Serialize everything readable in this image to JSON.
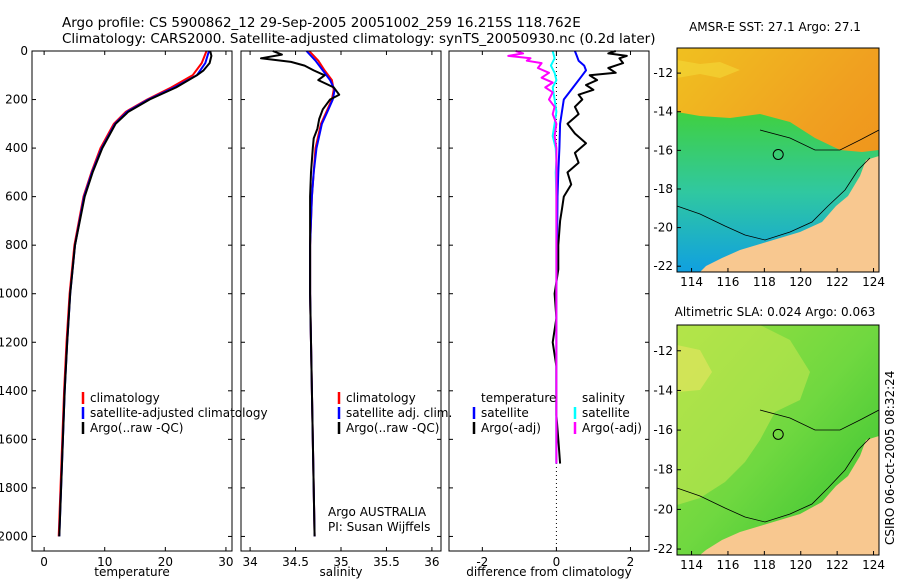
{
  "header": {
    "line1": "Argo profile: CS 5900862_12 29-Sep-2005 20051002_259 16.215S 118.762E",
    "line2": "Climatology: CARS2000. Satellite-adjusted climatology: synTS_20050930.nc (0.2d later)"
  },
  "colors": {
    "climatology": "#ff0000",
    "satellite": "#0000ff",
    "argo": "#000000",
    "argo_adj": "#ff00ff",
    "salinity_sat": "#00ffff",
    "land": "#f8c890"
  },
  "chart_data": [
    {
      "type": "line",
      "name": "temperature-panel",
      "xlabel": "temperature",
      "ylabel": "",
      "xlim": [
        -2,
        31
      ],
      "ylim": [
        2060,
        0
      ],
      "xticks": [
        0,
        10,
        20,
        30
      ],
      "yticks": [
        0,
        200,
        400,
        600,
        800,
        1000,
        1200,
        1400,
        1600,
        1800,
        2000
      ],
      "legend": [
        "climatology",
        "satellite-adjusted climatology",
        "Argo(..raw -QC)"
      ],
      "series": [
        {
          "name": "climatology",
          "depth": [
            0,
            50,
            100,
            150,
            200,
            250,
            300,
            400,
            500,
            600,
            800,
            1000,
            1200,
            1400,
            1600,
            1800,
            2000
          ],
          "values": [
            26.8,
            26.0,
            24.5,
            21.0,
            17.0,
            13.5,
            11.5,
            9.3,
            7.8,
            6.5,
            5.0,
            4.2,
            3.7,
            3.3,
            3.0,
            2.7,
            2.4
          ]
        },
        {
          "name": "satellite-adjusted climatology",
          "depth": [
            0,
            50,
            100,
            150,
            200,
            250,
            300,
            400,
            500,
            600,
            800,
            1000,
            1200,
            1400,
            1600,
            1800,
            2000
          ],
          "values": [
            27.2,
            26.6,
            25.2,
            21.5,
            17.2,
            13.7,
            11.7,
            9.5,
            7.9,
            6.6,
            5.1,
            4.3,
            3.8,
            3.4,
            3.1,
            2.8,
            2.5
          ]
        },
        {
          "name": "Argo(..raw -QC)",
          "depth": [
            0,
            20,
            50,
            80,
            100,
            150,
            200,
            250,
            300,
            400,
            500,
            600,
            800,
            1000,
            1200,
            1400,
            1600,
            1800,
            2000
          ],
          "values": [
            27.4,
            27.6,
            27.3,
            26.3,
            25.2,
            21.8,
            17.4,
            13.9,
            11.8,
            9.6,
            8.0,
            6.7,
            5.1,
            4.3,
            3.8,
            3.4,
            3.1,
            2.8,
            2.5
          ]
        }
      ]
    },
    {
      "type": "line",
      "name": "salinity-panel",
      "xlabel": "salinity",
      "ylabel": "",
      "xlim": [
        33.9,
        36.1
      ],
      "ylim": [
        2060,
        0
      ],
      "xticks": [
        34,
        34.5,
        35,
        35.5,
        36
      ],
      "legend": [
        "climatology",
        "satellite adj. clim.",
        "Argo(..raw -QC)"
      ],
      "annotation": [
        "Argo AUSTRALIA",
        "PI: Susan Wijffels"
      ],
      "series": [
        {
          "name": "climatology",
          "depth": [
            0,
            40,
            80,
            120,
            160,
            200,
            250,
            300,
            400,
            500,
            600,
            800,
            1000,
            1200,
            1400,
            1600,
            1800,
            2000
          ],
          "values": [
            34.65,
            34.75,
            34.82,
            34.9,
            34.92,
            34.9,
            34.84,
            34.78,
            34.72,
            34.7,
            34.68,
            34.66,
            34.66,
            34.67,
            34.68,
            34.69,
            34.7,
            34.71
          ]
        },
        {
          "name": "satellite adj. clim.",
          "depth": [
            0,
            40,
            80,
            120,
            160,
            200,
            250,
            300,
            400,
            500,
            600,
            800,
            1000,
            1200,
            1400,
            1600,
            1800,
            2000
          ],
          "values": [
            34.62,
            34.72,
            34.8,
            34.88,
            34.93,
            34.91,
            34.85,
            34.79,
            34.73,
            34.7,
            34.68,
            34.66,
            34.66,
            34.67,
            34.68,
            34.69,
            34.7,
            34.71
          ]
        },
        {
          "name": "Argo(..raw -QC)",
          "depth": [
            0,
            15,
            30,
            45,
            60,
            80,
            100,
            120,
            150,
            180,
            200,
            240,
            280,
            320,
            360,
            400,
            450,
            500,
            600,
            800,
            1000,
            1200,
            1400,
            1600,
            1800,
            2000
          ],
          "values": [
            34.25,
            34.35,
            34.12,
            34.45,
            34.6,
            34.7,
            34.82,
            34.75,
            34.92,
            34.98,
            34.88,
            34.8,
            34.76,
            34.74,
            34.7,
            34.69,
            34.68,
            34.67,
            34.66,
            34.66,
            34.66,
            34.67,
            34.68,
            34.69,
            34.7,
            34.71
          ]
        }
      ]
    },
    {
      "type": "line",
      "name": "difference-panel",
      "xlabel": "difference from climatology",
      "ylabel": "",
      "xlim": [
        -2.9,
        2.5
      ],
      "ylim": [
        2060,
        0
      ],
      "xticks": [
        -2,
        0,
        2
      ],
      "legend": [
        "temperature",
        "satellite",
        "Argo(-adj)",
        "salinity",
        "satellite",
        "Argo(-adj)"
      ],
      "series": [
        {
          "name": "temperature satellite",
          "depth": [
            0,
            20,
            40,
            60,
            80,
            100,
            150,
            200,
            300,
            400,
            500,
            600,
            800,
            1000,
            1200,
            1400,
            1600,
            1700
          ],
          "values": [
            0.5,
            0.55,
            0.6,
            0.75,
            0.8,
            0.7,
            0.45,
            0.2,
            0.1,
            0.08,
            0.05,
            0.03,
            0.02,
            0.0,
            0.0,
            0.0,
            0.0,
            0.0
          ]
        },
        {
          "name": "temperature Argo(-adj)",
          "depth": [
            0,
            10,
            20,
            30,
            50,
            70,
            90,
            100,
            120,
            140,
            160,
            180,
            200,
            230,
            260,
            300,
            340,
            380,
            420,
            460,
            500,
            550,
            600,
            650,
            700,
            800,
            900,
            1000,
            1100,
            1200,
            1300,
            1400,
            1500,
            1600,
            1700
          ],
          "values": [
            1.6,
            1.4,
            1.9,
            1.7,
            1.8,
            1.4,
            1.6,
            0.9,
            1.1,
            0.8,
            1.0,
            0.6,
            0.7,
            0.5,
            0.6,
            0.3,
            0.5,
            0.8,
            0.5,
            0.6,
            0.3,
            0.4,
            0.2,
            0.15,
            0.1,
            0.05,
            0.05,
            -0.05,
            0.0,
            -0.1,
            0.0,
            0.0,
            0.0,
            0.05,
            0.1
          ]
        },
        {
          "name": "salinity satellite",
          "depth": [
            0,
            30,
            60,
            90,
            120,
            150,
            200,
            250,
            300,
            350,
            400,
            450,
            500,
            600,
            800,
            1000,
            1200,
            1400,
            1600,
            1700
          ],
          "values": [
            -0.1,
            -0.05,
            -0.15,
            -0.05,
            0.0,
            -0.1,
            -0.05,
            0.0,
            -0.05,
            -0.1,
            -0.02,
            0.0,
            -0.02,
            0.0,
            0.0,
            0.0,
            0.0,
            0.0,
            0.0,
            0.0
          ]
        },
        {
          "name": "salinity Argo(-adj)",
          "depth": [
            0,
            10,
            20,
            30,
            40,
            50,
            70,
            90,
            110,
            130,
            150,
            170,
            200,
            230,
            260,
            300,
            350,
            400,
            500,
            600,
            800,
            1000,
            1200,
            1400,
            1600,
            1700
          ],
          "values": [
            -1.1,
            -0.9,
            -1.3,
            -0.7,
            -0.8,
            -0.4,
            -0.5,
            -0.2,
            -0.4,
            -0.1,
            -0.3,
            -0.1,
            -0.2,
            -0.05,
            -0.1,
            0.0,
            -0.05,
            0.0,
            0.0,
            0.0,
            0.0,
            0.0,
            0.0,
            0.0,
            0.0,
            0.0
          ]
        }
      ]
    }
  ],
  "maps": [
    {
      "name": "sst-map",
      "title": "AMSR-E SST: 27.1 Argo: 27.1",
      "xticks": [
        "114",
        "116",
        "118",
        "120",
        "122",
        "124"
      ],
      "yticks": [
        "-12",
        "-14",
        "-16",
        "-18",
        "-20",
        "-22"
      ],
      "float_lon": 118.762,
      "float_lat": -16.215
    },
    {
      "name": "sla-map",
      "title": "Altimetric SLA: 0.024 Argo: 0.063",
      "xticks": [
        "114",
        "116",
        "118",
        "120",
        "122",
        "124"
      ],
      "yticks": [
        "-12",
        "-14",
        "-16",
        "-18",
        "-20",
        "-22"
      ],
      "float_lon": 118.762,
      "float_lat": -16.215
    }
  ],
  "footer": {
    "timestamp": "CSIRO 06-Oct-2005 08:32:24"
  }
}
